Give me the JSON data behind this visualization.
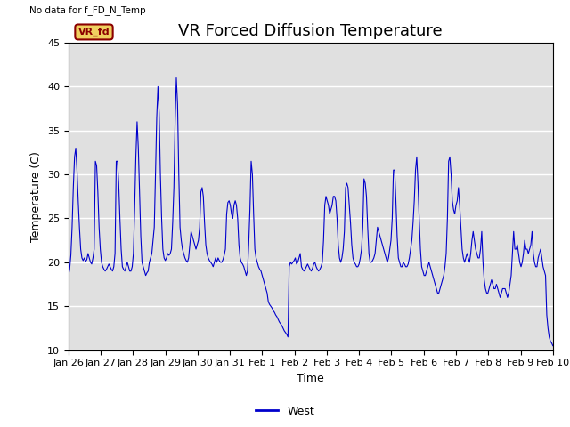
{
  "title": "VR Forced Diffusion Temperature",
  "no_data_label": "No data for f_FD_N_Temp",
  "vr_fd_label": "VR_fd",
  "xlabel": "Time",
  "ylabel": "Temperature (C)",
  "ylim": [
    10,
    45
  ],
  "yticks": [
    10,
    15,
    20,
    25,
    30,
    35,
    40,
    45
  ],
  "line_color": "#0000cc",
  "bg_color": "#e0e0e0",
  "legend_label": "West",
  "title_fontsize": 13,
  "axis_fontsize": 9,
  "tick_fontsize": 8,
  "xtick_labels": [
    "Jan 26",
    "Jan 27",
    "Jan 28",
    "Jan 29",
    "Jan 30",
    "Jan 31",
    "Feb 1",
    "Feb 2",
    "Feb 3",
    "Feb 4",
    "Feb 5",
    "Feb 6",
    "Feb 7",
    "Feb 8",
    "Feb 9",
    "Feb 10"
  ],
  "y_values": [
    18.5,
    19.2,
    20.8,
    24.0,
    28.5,
    32.0,
    33.0,
    30.5,
    27.0,
    24.0,
    21.5,
    20.5,
    20.2,
    20.5,
    20.1,
    20.3,
    21.0,
    20.5,
    20.0,
    19.8,
    20.5,
    21.5,
    31.5,
    31.0,
    28.0,
    24.0,
    21.5,
    20.0,
    19.5,
    19.2,
    19.0,
    19.2,
    19.5,
    19.8,
    19.5,
    19.2,
    19.0,
    19.5,
    21.0,
    31.5,
    31.5,
    29.0,
    25.0,
    21.5,
    19.5,
    19.2,
    19.0,
    19.5,
    20.0,
    19.5,
    19.0,
    19.0,
    19.5,
    21.0,
    26.0,
    32.0,
    36.0,
    33.0,
    28.0,
    23.0,
    20.0,
    19.5,
    19.0,
    18.5,
    18.8,
    19.0,
    20.0,
    20.5,
    21.0,
    22.5,
    24.0,
    30.0,
    36.5,
    40.0,
    37.0,
    30.0,
    25.0,
    21.5,
    20.5,
    20.2,
    20.5,
    21.0,
    20.8,
    21.0,
    21.5,
    24.5,
    28.5,
    36.0,
    41.0,
    38.0,
    30.0,
    24.0,
    22.5,
    21.5,
    21.0,
    20.5,
    20.2,
    20.0,
    20.5,
    22.0,
    23.5,
    23.0,
    22.5,
    22.0,
    21.5,
    22.0,
    22.5,
    24.0,
    28.0,
    28.5,
    27.5,
    24.5,
    22.0,
    21.0,
    20.5,
    20.2,
    20.0,
    19.8,
    19.5,
    20.0,
    20.5,
    20.0,
    20.5,
    20.2,
    20.0,
    20.0,
    20.3,
    20.8,
    21.5,
    25.5,
    26.8,
    27.0,
    26.5,
    25.5,
    25.0,
    26.5,
    27.0,
    26.5,
    25.0,
    22.0,
    20.5,
    20.0,
    19.8,
    19.5,
    19.0,
    18.5,
    19.0,
    22.0,
    26.0,
    31.5,
    30.0,
    25.5,
    21.5,
    20.5,
    20.0,
    19.5,
    19.2,
    19.0,
    18.5,
    18.0,
    17.5,
    17.0,
    16.5,
    15.5,
    15.2,
    15.0,
    14.8,
    14.5,
    14.3,
    14.0,
    13.8,
    13.5,
    13.2,
    13.0,
    12.8,
    12.5,
    12.2,
    12.0,
    11.8,
    11.5,
    19.5,
    20.0,
    19.8,
    20.0,
    20.2,
    20.5,
    19.8,
    20.0,
    20.5,
    21.0,
    19.5,
    19.2,
    19.0,
    19.2,
    19.5,
    19.8,
    19.5,
    19.2,
    19.0,
    19.3,
    19.8,
    20.0,
    19.5,
    19.2,
    19.0,
    19.2,
    19.5,
    20.0,
    22.5,
    26.5,
    27.5,
    27.0,
    26.5,
    25.5,
    26.0,
    26.5,
    27.5,
    27.5,
    27.0,
    25.0,
    22.0,
    20.5,
    20.0,
    20.5,
    21.5,
    23.5,
    28.5,
    29.0,
    28.5,
    26.5,
    24.5,
    22.0,
    20.5,
    20.0,
    19.8,
    19.5,
    19.5,
    19.8,
    20.5,
    21.5,
    24.0,
    29.5,
    29.0,
    27.5,
    24.0,
    21.0,
    20.0,
    20.0,
    20.2,
    20.5,
    21.0,
    22.5,
    24.0,
    23.5,
    23.0,
    22.5,
    22.0,
    21.5,
    21.0,
    20.5,
    20.0,
    20.5,
    21.5,
    22.5,
    25.0,
    30.5,
    30.5,
    27.0,
    23.0,
    20.5,
    20.0,
    19.5,
    19.5,
    20.0,
    19.8,
    19.5,
    19.5,
    19.8,
    20.5,
    21.5,
    22.5,
    24.5,
    27.0,
    30.5,
    32.0,
    29.0,
    25.0,
    21.5,
    19.5,
    19.0,
    18.5,
    18.5,
    19.0,
    19.5,
    20.0,
    19.5,
    19.0,
    18.5,
    18.0,
    17.5,
    17.0,
    16.5,
    16.5,
    17.0,
    17.5,
    18.0,
    18.5,
    19.5,
    21.0,
    25.0,
    31.5,
    32.0,
    30.0,
    27.0,
    26.0,
    25.5,
    26.5,
    27.0,
    28.5,
    26.5,
    24.0,
    21.5,
    20.5,
    20.0,
    20.5,
    21.0,
    20.5,
    20.0,
    21.0,
    22.5,
    23.5,
    22.5,
    21.5,
    21.0,
    20.5,
    20.5,
    21.5,
    23.5,
    20.0,
    18.0,
    17.0,
    16.5,
    16.5,
    17.0,
    17.5,
    18.0,
    17.5,
    17.0,
    17.0,
    17.5,
    17.0,
    16.5,
    16.0,
    16.5,
    17.0,
    17.0,
    17.0,
    16.5,
    16.0,
    16.5,
    17.5,
    18.5,
    21.0,
    23.5,
    21.5,
    21.5,
    22.0,
    21.0,
    20.0,
    19.5,
    20.0,
    21.0,
    22.5,
    21.5,
    21.5,
    21.0,
    21.5,
    22.0,
    23.5,
    21.0,
    20.0,
    19.5,
    19.5,
    20.5,
    21.0,
    21.5,
    20.5,
    19.5,
    19.0,
    18.5,
    14.0,
    12.5,
    11.5,
    11.0,
    10.8,
    10.5
  ]
}
